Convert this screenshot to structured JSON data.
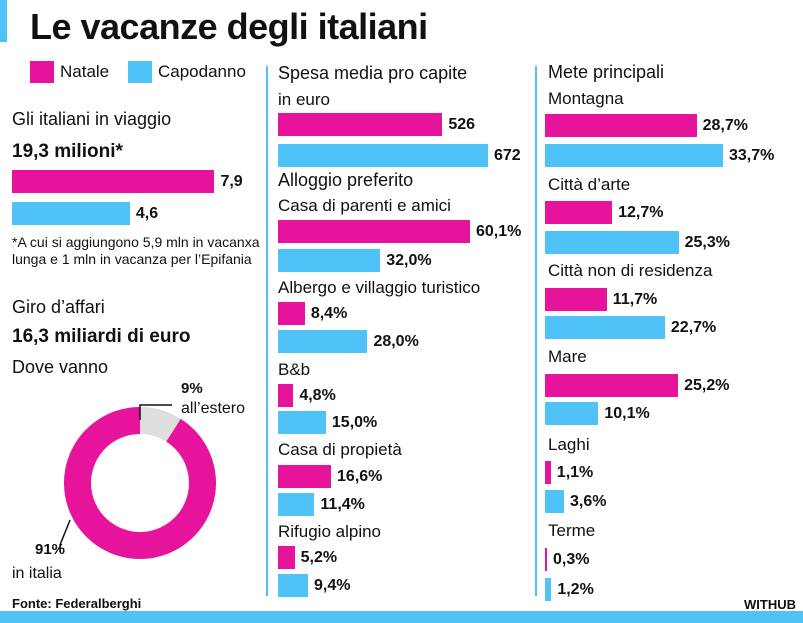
{
  "title": "Le vacanze degli italiani",
  "legend": {
    "natale": "Natale",
    "capodanno": "Capodanno"
  },
  "colors": {
    "natale": "#e6149b",
    "capodanno": "#4fc3f7",
    "donut_rest": "#dedede"
  },
  "chart_data": [
    {
      "type": "bar",
      "title": "Gli italiani in viaggio",
      "subtitle": "19,3 milioni*",
      "series": [
        {
          "name": "Natale",
          "values": [
            7.9
          ],
          "labels": [
            "7,9"
          ]
        },
        {
          "name": "Capodanno",
          "values": [
            4.6
          ],
          "labels": [
            "4,6"
          ]
        }
      ],
      "note": "*A cui si aggiungono 5,9 mln in vacanxa lunga e 1 mln in vacanza per l’Epifania"
    },
    {
      "type": "pie",
      "title": "Dove vanno",
      "slices": [
        {
          "name": "in italia",
          "value": 91,
          "label": "91%"
        },
        {
          "name": "all’estero",
          "value": 9,
          "label": "9%"
        }
      ]
    },
    {
      "type": "bar",
      "title": "Spesa media pro capite",
      "subtitle": "in euro",
      "series": [
        {
          "name": "Natale",
          "values": [
            526
          ],
          "labels": [
            "526"
          ]
        },
        {
          "name": "Capodanno",
          "values": [
            672
          ],
          "labels": [
            "672"
          ]
        }
      ]
    },
    {
      "type": "bar",
      "title": "Alloggio preferito",
      "categories": [
        "Casa di parenti e amici",
        "Albergo e villaggio turistico",
        "B&b",
        "Casa di propietà",
        "Rifugio alpino"
      ],
      "series": [
        {
          "name": "Natale",
          "values": [
            60.1,
            8.4,
            4.8,
            16.6,
            5.2
          ],
          "labels": [
            "60,1%",
            "8,4%",
            "4,8%",
            "16,6%",
            "5,2%"
          ]
        },
        {
          "name": "Capodanno",
          "values": [
            32.0,
            28.0,
            15.0,
            11.4,
            9.4
          ],
          "labels": [
            "32,0%",
            "28,0%",
            "15,0%",
            "11,4%",
            "9,4%"
          ]
        }
      ]
    },
    {
      "type": "bar",
      "title": "Mete principali",
      "categories": [
        "Montagna",
        "Città d’arte",
        "Città non di residenza",
        "Mare",
        "Laghi",
        "Terme"
      ],
      "series": [
        {
          "name": "Natale",
          "values": [
            28.7,
            12.7,
            11.7,
            25.2,
            1.1,
            0.3
          ],
          "labels": [
            "28,7%",
            "12,7%",
            "11,7%",
            "25,2%",
            "1,1%",
            "0,3%"
          ]
        },
        {
          "name": "Capodanno",
          "values": [
            33.7,
            25.3,
            22.7,
            10.1,
            3.6,
            1.2
          ],
          "labels": [
            "33,7%",
            "25,3%",
            "22,7%",
            "10,1%",
            "3,6%",
            "1,2%"
          ]
        }
      ]
    }
  ],
  "giro": {
    "title": "Giro d’affari",
    "value": "16,3 miliardi di euro"
  },
  "footer": {
    "source": "Fonte: Federalberghi",
    "brand": "WITHUB"
  }
}
